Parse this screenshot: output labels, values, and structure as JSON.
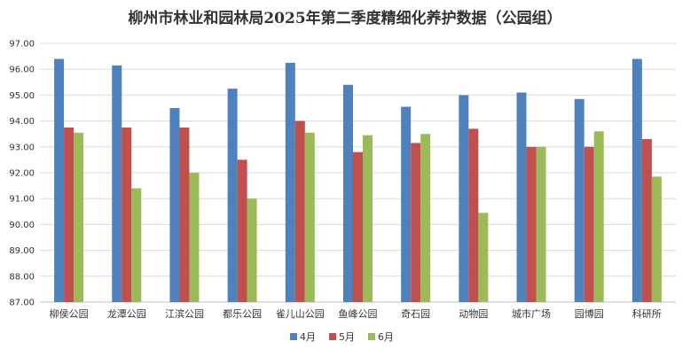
{
  "chart_data": {
    "type": "bar",
    "title": "柳州市林业和园林局2025年第二季度精细化养护数据（公园组）",
    "xlabel": "",
    "ylabel": "",
    "ylim": [
      87,
      97
    ],
    "ytick_step": 1,
    "ytick_labels": [
      "87.00",
      "88.00",
      "89.00",
      "90.00",
      "91.00",
      "92.00",
      "93.00",
      "94.00",
      "95.00",
      "96.00",
      "97.00"
    ],
    "grid": true,
    "legend_position": "bottom",
    "categories": [
      "柳侯公园",
      "龙潭公园",
      "江滨公园",
      "都乐公园",
      "雀儿山公园",
      "鱼峰公园",
      "奇石园",
      "动物园",
      "城市广场",
      "园博园",
      "科研所"
    ],
    "series": [
      {
        "name": "4月",
        "color": "#4F81BD",
        "values": [
          96.4,
          96.15,
          94.5,
          95.25,
          96.25,
          95.4,
          94.55,
          95.0,
          95.1,
          94.85,
          96.4
        ]
      },
      {
        "name": "5月",
        "color": "#C0504D",
        "values": [
          93.75,
          93.75,
          93.75,
          92.5,
          94.0,
          92.8,
          93.15,
          93.7,
          93.0,
          93.0,
          93.3
        ]
      },
      {
        "name": "6月",
        "color": "#9BBB59",
        "values": [
          93.55,
          91.4,
          92.0,
          91.0,
          93.55,
          93.45,
          93.5,
          90.45,
          93.0,
          93.6,
          91.85
        ]
      }
    ]
  }
}
